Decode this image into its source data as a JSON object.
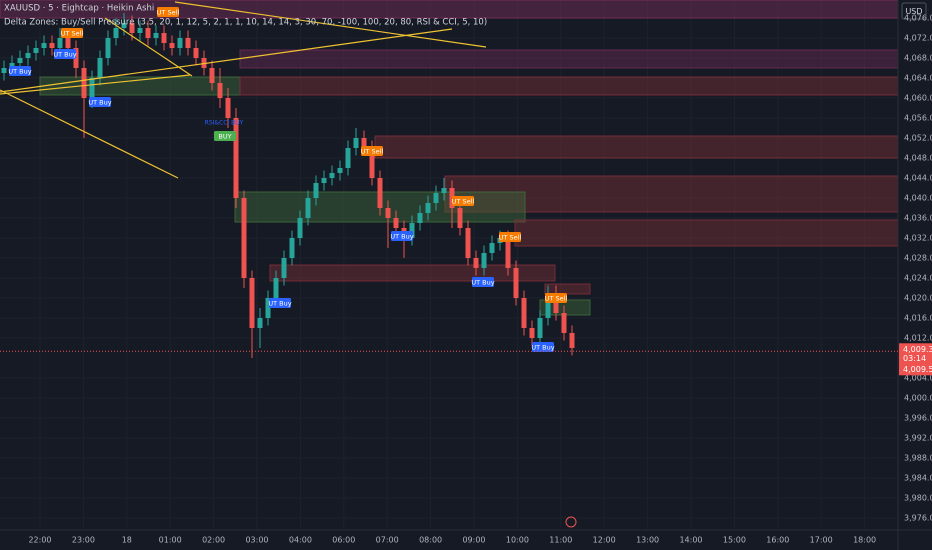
{
  "chart_data": {
    "type": "candlestick",
    "title": "XAUUSD · 5 · Eightcap · Heikin Ashi",
    "subtitle": "Delta Zones: Buy/Sell Pressure (3.5, 20, 1, 12, 5, 2, 1, 1, 10, 14, 14, 3, 30, 70, -100, 100, 20, 80, RSI & CCI, 5, 10)",
    "currency": "USD",
    "up_color": "#26a69a",
    "down_color": "#ef5350",
    "grid": true,
    "categories": [
      "22:00",
      "23:00",
      "18",
      "01:00",
      "02:00",
      "03:00",
      "04:00",
      "06:00",
      "07:00",
      "08:00",
      "09:00",
      "10:00",
      "11:00",
      "12:00",
      "13:00",
      "14:00",
      "15:00",
      "16:00",
      "17:00",
      "18:00"
    ],
    "ylim": [
      3973.6,
      4079.6
    ],
    "yticks": [
      {
        "value": 4076,
        "label": "4,076.00"
      },
      {
        "value": 4072,
        "label": "4,072.00"
      },
      {
        "value": 4068,
        "label": "4,068.00"
      },
      {
        "value": 4064,
        "label": "4,064.00"
      },
      {
        "value": 4060,
        "label": "4,060.00"
      },
      {
        "value": 4056,
        "label": "4,056.00"
      },
      {
        "value": 4052,
        "label": "4,052.00"
      },
      {
        "value": 4048,
        "label": "4,048.00"
      },
      {
        "value": 4044,
        "label": "4,044.00"
      },
      {
        "value": 4040,
        "label": "4,040.00"
      },
      {
        "value": 4036,
        "label": "4,036.00"
      },
      {
        "value": 4032,
        "label": "4,032.00"
      },
      {
        "value": 4028,
        "label": "4,028.00"
      },
      {
        "value": 4024,
        "label": "4,024.00"
      },
      {
        "value": 4020,
        "label": "4,020.00"
      },
      {
        "value": 4016,
        "label": "4,016.00"
      },
      {
        "value": 4012,
        "label": "4,012.00"
      },
      {
        "value": 4004,
        "label": "4,004.00"
      },
      {
        "value": 4000,
        "label": "4,000.00"
      },
      {
        "value": 3996,
        "label": "3,996.00"
      },
      {
        "value": 3992,
        "label": "3,992.00"
      },
      {
        "value": 3988,
        "label": "3,988.00"
      },
      {
        "value": 3984,
        "label": "3,984.00"
      },
      {
        "value": 3980,
        "label": "3,980.00"
      },
      {
        "value": 3976,
        "label": "3,976.00"
      }
    ],
    "open": [
      4065,
      4066,
      4067,
      4068,
      4069,
      4070,
      4071,
      4070,
      4072,
      4070,
      4066,
      4060,
      4064,
      4068,
      4072,
      4074,
      4075,
      4073,
      4074,
      4072,
      4073,
      4071,
      4070,
      4072,
      4070,
      4068,
      4066,
      4063,
      4060,
      4056,
      4040,
      4024,
      4014,
      4016,
      4020,
      4024,
      4028,
      4032,
      4036,
      4040,
      4043,
      4044,
      4045,
      4046,
      4050,
      4052,
      4050,
      4044,
      4038,
      4036,
      4034,
      4032,
      4035,
      4037,
      4039,
      4041,
      4042,
      4038,
      4034,
      4028,
      4026,
      4029,
      4031,
      4032,
      4026,
      4020,
      4014,
      4012,
      4016,
      4021,
      4017,
      4013
    ],
    "high": [
      4067.5,
      4068.5,
      4069.5,
      4070.5,
      4071.5,
      4072.5,
      4072.5,
      4074,
      4073.5,
      4071.5,
      4067.5,
      4065.5,
      4069.5,
      4073.5,
      4076,
      4077,
      4076.5,
      4075.5,
      4075.5,
      4074.5,
      4074.5,
      4072.5,
      4073.5,
      4073.5,
      4071.5,
      4069.5,
      4067.5,
      4066,
      4062,
      4058,
      4041.5,
      4025.5,
      4018,
      4021.5,
      4025.5,
      4029.5,
      4033.5,
      4037.5,
      4041.5,
      4044.5,
      4045.5,
      4046.5,
      4047.5,
      4051.5,
      4054,
      4053.5,
      4051.5,
      4045.5,
      4039.5,
      4037.5,
      4035.5,
      4036.5,
      4038.5,
      4040.5,
      4042.5,
      4044,
      4043.5,
      4039.5,
      4035.5,
      4029.5,
      4030.5,
      4032.5,
      4033.5,
      4033.5,
      4027.5,
      4021.5,
      4015.5,
      4017.5,
      4022.5,
      4022.5,
      4018.5,
      4014.5
    ],
    "low": [
      4063.5,
      4064.5,
      4065.5,
      4066.5,
      4067.5,
      4068.5,
      4068.5,
      4068.5,
      4068.5,
      4064,
      4052,
      4058,
      4062.5,
      4066.5,
      4070.5,
      4072.5,
      4071.5,
      4071.5,
      4070.5,
      4070.5,
      4069.5,
      4068.5,
      4068.5,
      4068.5,
      4066.5,
      4064.5,
      4061.5,
      4058,
      4054,
      4038,
      4022,
      4008,
      4010,
      4014.5,
      4018.5,
      4022.5,
      4026.5,
      4030.5,
      4034.5,
      4038.5,
      4041.5,
      4042.5,
      4043.5,
      4044.5,
      4048.5,
      4048.5,
      4042.5,
      4036.5,
      4030,
      4032.5,
      4028,
      4030.5,
      4033.5,
      4035.5,
      4037.5,
      4039.5,
      4034,
      4032.5,
      4026.5,
      4024.5,
      4024.5,
      4027.5,
      4029.5,
      4024.5,
      4018.5,
      4012.5,
      4010.5,
      4010.5,
      4014.5,
      4015.5,
      4011.5,
      4008.5
    ],
    "close": [
      4066,
      4067,
      4068,
      4069,
      4070,
      4071,
      4070,
      4072,
      4070,
      4066,
      4060,
      4064,
      4068,
      4072,
      4074,
      4075,
      4073,
      4074,
      4072,
      4073,
      4071,
      4070,
      4072,
      4070,
      4068,
      4066,
      4063,
      4060,
      4056,
      4040,
      4024,
      4014,
      4016,
      4020,
      4024,
      4028,
      4032,
      4036,
      4040,
      4043,
      4044,
      4045,
      4046,
      4050,
      4052,
      4050,
      4044,
      4038,
      4036,
      4034,
      4032,
      4035,
      4037,
      4039,
      4041,
      4042,
      4038,
      4034,
      4028,
      4026,
      4029,
      4031,
      4032,
      4026,
      4020,
      4014,
      4012,
      4016,
      4021,
      4017,
      4013,
      4010
    ],
    "zones": [
      {
        "top": 4079.6,
        "bottom": 4076,
        "color": "#7a2e5a"
      },
      {
        "top": 4069.6,
        "bottom": 4066,
        "color": "#6a2a55"
      },
      {
        "top": 4064.2,
        "bottom": 4060.6,
        "color": "#3d6b3a"
      },
      {
        "top": 4064.2,
        "bottom": 4060.6,
        "color": "#7a3038"
      },
      {
        "top": 4052.4,
        "bottom": 4048,
        "color": "#7a3038"
      },
      {
        "top": 4044.4,
        "bottom": 4037.2,
        "color": "#7a3038"
      },
      {
        "top": 4041.2,
        "bottom": 4035.2,
        "color": "#3d6b3a"
      },
      {
        "top": 4035.6,
        "bottom": 4030.4,
        "color": "#7a3038"
      },
      {
        "top": 4026.6,
        "bottom": 4023.4,
        "color": "#7a3038"
      },
      {
        "top": 4022.8,
        "bottom": 4020.8,
        "color": "#7a3038"
      },
      {
        "top": 4019.6,
        "bottom": 4016.6,
        "color": "#3d6b3a"
      }
    ],
    "signals": [
      "UT Buy",
      "UT Sell",
      "UT Buy",
      "UT Buy",
      "UT Sell",
      "BUY",
      "UT Buy",
      "UT Sell",
      "UT Buy",
      "UT Sell",
      "UT Sell",
      "UT Buy",
      "UT Sell",
      "UT Buy"
    ],
    "signal_note": "RSI&CCI BUY",
    "last_price": {
      "value": 4009.34,
      "label": "4,009.34"
    },
    "countdown": "03:14",
    "prev_price": {
      "value": 4009.55,
      "label": "4,009.55"
    }
  }
}
